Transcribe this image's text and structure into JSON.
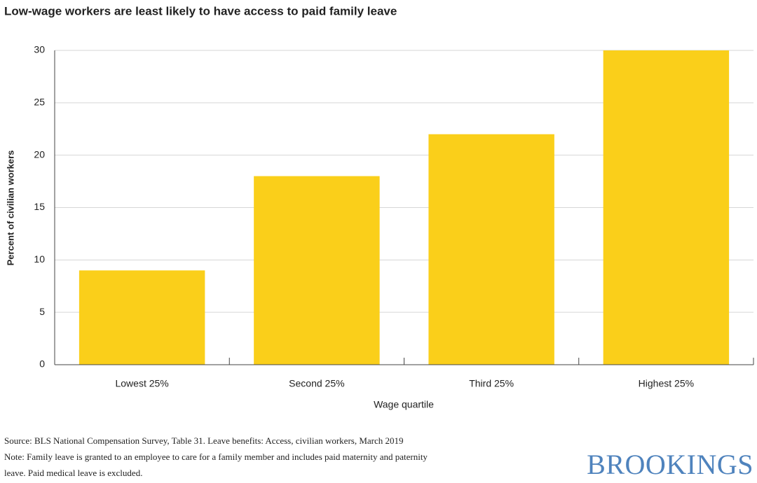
{
  "chart_data": {
    "type": "bar",
    "title": "Low-wage workers are least likely to have access to paid family leave",
    "categories": [
      "Lowest 25%",
      "Second 25%",
      "Third 25%",
      "Highest 25%"
    ],
    "values": [
      9,
      18,
      22,
      30
    ],
    "color": "#facf1a",
    "ylim": [
      0,
      30
    ],
    "yticks": [
      0,
      5,
      10,
      15,
      20,
      25,
      30
    ],
    "grid": true,
    "y_label": "Percent of civilian workers",
    "x_label": "Wage quartile",
    "source": "Source: BLS National Compensation Survey, Table 31. Leave benefits: Access, civilian workers, March 2019",
    "note": "Note: Family leave is granted to an employee to care for a family member and includes paid maternity and paternity leave. Paid medical leave is excluded.",
    "brand": "BROOKINGS"
  }
}
